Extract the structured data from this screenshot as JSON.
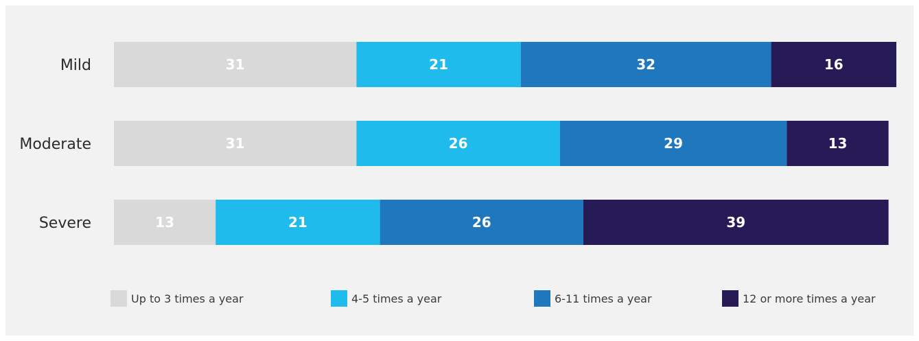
{
  "chart_data": {
    "type": "bar",
    "orientation": "horizontal",
    "stacked": true,
    "categories": [
      "Mild",
      "Moderate",
      "Severe"
    ],
    "series": [
      {
        "name": "Up to 3 times a year",
        "color": "#d9d9d9",
        "values": [
          31,
          31,
          13
        ]
      },
      {
        "name": "4-5 times a year",
        "color": "#1fbbed",
        "values": [
          21,
          26,
          21
        ]
      },
      {
        "name": "6-11 times a year",
        "color": "#1f78be",
        "values": [
          32,
          29,
          26
        ]
      },
      {
        "name": "12 or more times a year",
        "color": "#261a57",
        "values": [
          16,
          13,
          39
        ]
      }
    ],
    "title": "",
    "xlabel": "",
    "ylabel": "",
    "grid": false,
    "legend_position": "bottom"
  },
  "colors": {
    "background": "#f2f2f2",
    "category_text": "#2b2b2b",
    "bar_label_text": "#ffffff"
  }
}
